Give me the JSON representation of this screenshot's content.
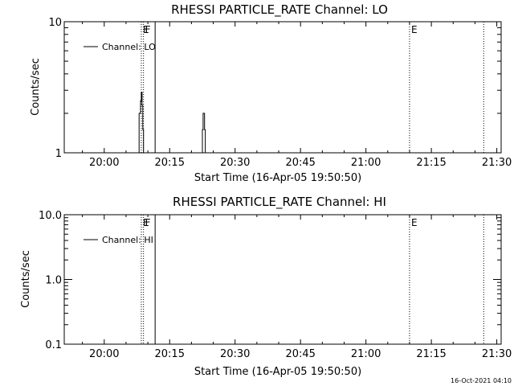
{
  "timestamp": "16-Oct-2021 04:10",
  "chart_data": [
    {
      "type": "line",
      "title": "RHESSI PARTICLE_RATE Channel: LO",
      "xlabel": "Start Time (16-Apr-05 19:50:50)",
      "ylabel": "Counts/sec",
      "y_scale": "log",
      "ylim": [
        1,
        10
      ],
      "y_ticks": [
        1,
        10
      ],
      "y_tick_labels": [
        "1",
        "10"
      ],
      "xlim": [
        "19:50:50",
        "21:31:00"
      ],
      "x_ticks": [
        "20:00",
        "20:15",
        "20:30",
        "20:45",
        "21:00",
        "21:15",
        "21:30"
      ],
      "legend": {
        "position": "top-left",
        "entries": [
          "Channel: LO"
        ]
      },
      "markers": [
        {
          "time": "20:08:30",
          "label": "E",
          "style": "dotted"
        },
        {
          "time": "20:09:00",
          "label": "F",
          "style": "dotted"
        },
        {
          "time": "20:11:40",
          "label": "",
          "style": "solid"
        },
        {
          "time": "21:10:00",
          "label": "E",
          "style": "dotted"
        },
        {
          "time": "21:27:00",
          "label": "",
          "style": "dotted"
        }
      ],
      "series": [
        {
          "name": "Channel: LO",
          "x": [
            "20:07:50",
            "20:08:00",
            "20:08:10",
            "20:08:20",
            "20:08:30",
            "20:08:40",
            "20:08:50",
            "20:09:00",
            "20:22:20",
            "20:22:30",
            "20:22:40",
            "20:22:50",
            "20:23:00",
            "20:23:10"
          ],
          "y": [
            1,
            2,
            2,
            2.5,
            2.9,
            2.3,
            1.5,
            1,
            1,
            1.5,
            2,
            2,
            1.5,
            1
          ],
          "segments": [
            [
              0,
              8
            ],
            [
              8,
              14
            ]
          ]
        }
      ]
    },
    {
      "type": "line",
      "title": "RHESSI PARTICLE_RATE Channel: HI",
      "xlabel": "Start Time (16-Apr-05 19:50:50)",
      "ylabel": "Counts/sec",
      "y_scale": "log",
      "ylim": [
        0.1,
        10
      ],
      "y_ticks": [
        0.1,
        1,
        10
      ],
      "y_tick_labels": [
        "0.1",
        "1.0",
        "10.0"
      ],
      "xlim": [
        "19:50:50",
        "21:31:00"
      ],
      "x_ticks": [
        "20:00",
        "20:15",
        "20:30",
        "20:45",
        "21:00",
        "21:15",
        "21:30"
      ],
      "legend": {
        "position": "top-left",
        "entries": [
          "Channel: HI"
        ]
      },
      "markers": [
        {
          "time": "20:08:30",
          "label": "E",
          "style": "dotted"
        },
        {
          "time": "20:09:00",
          "label": "F",
          "style": "dotted"
        },
        {
          "time": "20:11:40",
          "label": "",
          "style": "solid"
        },
        {
          "time": "21:10:00",
          "label": "E",
          "style": "dotted"
        },
        {
          "time": "21:27:00",
          "label": "",
          "style": "dotted"
        }
      ],
      "series": [
        {
          "name": "Channel: HI",
          "x": [],
          "y": [],
          "segments": []
        }
      ]
    }
  ]
}
